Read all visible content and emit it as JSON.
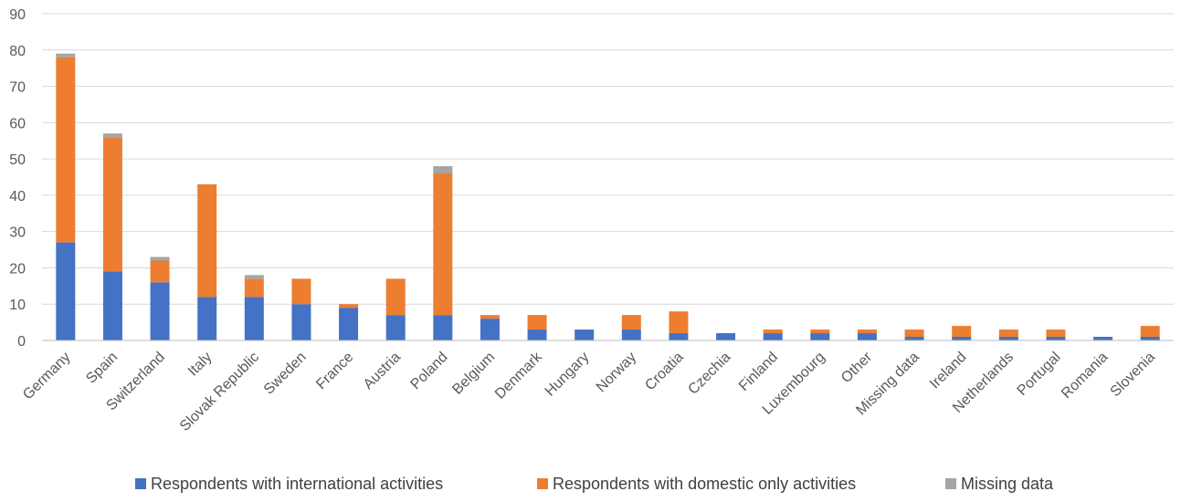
{
  "chart_data": {
    "type": "bar",
    "stacked": true,
    "categories": [
      "Germany",
      "Spain",
      "Switzerland",
      "Italy",
      "Slovak Republic",
      "Sweden",
      "France",
      "Austria",
      "Poland",
      "Belgium",
      "Denmark",
      "Hungary",
      "Norway",
      "Croatia",
      "Czechia",
      "Finland",
      "Luxembourg",
      "Other",
      "Missing data",
      "Ireland",
      "Netherlands",
      "Portugal",
      "Romania",
      "Slovenia"
    ],
    "series": [
      {
        "name": "Respondents with international activities",
        "color": "#4472c4",
        "values": [
          27,
          19,
          16,
          12,
          12,
          10,
          9,
          7,
          7,
          6,
          3,
          3,
          3,
          2,
          2,
          2,
          2,
          2,
          1,
          1,
          1,
          1,
          1,
          1
        ]
      },
      {
        "name": "Respondents with domestic only activities",
        "color": "#ed7d31",
        "values": [
          51,
          37,
          6,
          31,
          5,
          7,
          1,
          10,
          39,
          1,
          4,
          0,
          4,
          6,
          0,
          1,
          1,
          1,
          2,
          3,
          2,
          2,
          0,
          3
        ]
      },
      {
        "name": "Missing data",
        "color": "#a5a5a5",
        "values": [
          1,
          1,
          1,
          0,
          1,
          0,
          0,
          0,
          2,
          0,
          0,
          0,
          0,
          0,
          0,
          0,
          0,
          0,
          0,
          0,
          0,
          0,
          0,
          0
        ]
      }
    ],
    "yticks": [
      "0",
      "10",
      "20",
      "30",
      "40",
      "50",
      "60",
      "70",
      "80",
      "90"
    ],
    "ylim": [
      0,
      90
    ],
    "grid": true,
    "legend_position": "bottom"
  }
}
